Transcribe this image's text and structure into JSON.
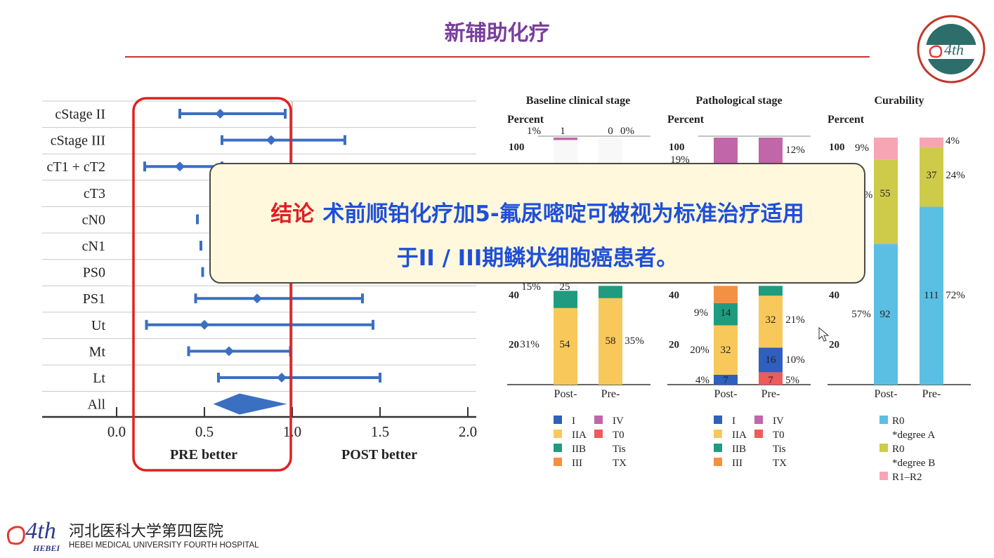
{
  "slide": {
    "title": "新辅助化疗",
    "conclusion": {
      "lead": "结论",
      "line1": "术前顺铂化疗加5-氟尿嘧啶可被视为标准治疗适用",
      "line2": "于II / III期鳞状细胞癌患者。"
    }
  },
  "logo_bottom": {
    "mark": "4th",
    "hebei": "HEBEI",
    "cn": "河北医科大学第四医院",
    "en": "HEBEI MEDICAL UNIVERSITY FOURTH HOSPITAL"
  },
  "logo_top": {
    "mark": "4th",
    "hebei": "HEBEI",
    "ring_text": "河北医科大学第四医院"
  },
  "colors": {
    "title": "#7a3f9c",
    "rule": "#c0392b",
    "forest": "#3b6fc2",
    "highlight_box": "#e02020",
    "stage_I": "#2f5fbf",
    "stage_IIA": "#f9c85a",
    "stage_IIB": "#1f9c7f",
    "stage_III": "#f39142",
    "stage_IV": "#c066a9",
    "stage_T0": "#ef5a5a",
    "r0a": "#5bbfe3",
    "r0b": "#cfcb4a",
    "r12": "#f7a5b5"
  },
  "chart_data": [
    {
      "type": "forest",
      "categories": [
        "cStage II",
        "cStage III",
        "cT1 + cT2",
        "cT3",
        "cN0",
        "cN1",
        "PS0",
        "PS1",
        "Ut",
        "Mt",
        "Lt",
        "All"
      ],
      "points": [
        {
          "label": "cStage II",
          "est": 0.59,
          "low": 0.36,
          "high": 0.96
        },
        {
          "label": "cStage III",
          "est": 0.88,
          "low": 0.6,
          "high": 1.3
        },
        {
          "label": "cT1 + cT2",
          "est": 0.36,
          "low": 0.16,
          "high": 0.6
        },
        {
          "label": "cN0",
          "low": 0.46
        },
        {
          "label": "cN1",
          "low": 0.48
        },
        {
          "label": "PS0",
          "low": 0.49
        },
        {
          "label": "PS1",
          "est": 0.8,
          "low": 0.45,
          "high": 1.4
        },
        {
          "label": "Ut",
          "est": 0.5,
          "low": 0.17,
          "high": 1.46
        },
        {
          "label": "Mt",
          "est": 0.64,
          "low": 0.41,
          "high": 0.99
        },
        {
          "label": "Lt",
          "est": 0.94,
          "low": 0.58,
          "high": 1.5
        },
        {
          "label": "All",
          "est": 0.7,
          "low": 0.55,
          "high": 0.97,
          "diamond": true
        }
      ],
      "xlim": [
        0,
        2
      ],
      "xticks": [
        "0.0",
        "0.5",
        "1.0",
        "1.5",
        "2.0"
      ],
      "xlabels": {
        "left": "PRE better",
        "right": "POST better"
      }
    },
    {
      "type": "stacked-bar",
      "title": "Baseline clinical stage",
      "ylabel": "Percent",
      "yticks": [
        "100",
        "40",
        "20"
      ],
      "categories": [
        "Post-",
        "Pre-"
      ],
      "legend": [
        [
          "I",
          "IV"
        ],
        [
          "IIA",
          "T0"
        ],
        [
          "IIB",
          "Tis"
        ],
        [
          "III",
          "TX"
        ]
      ],
      "labels": {
        "pct_top_left": "1%",
        "n_top_left": "1",
        "n_top_right": "0",
        "pct_top_right": "0%",
        "pct_mid_left": "15%",
        "n_mid_left": "25",
        "pct_low_left": "31%",
        "n_low_left": "54",
        "n_low_right": "58",
        "pct_low_right": "35%"
      }
    },
    {
      "type": "stacked-bar",
      "title": "Pathological stage",
      "ylabel": "Percent",
      "yticks": [
        "100",
        "40",
        "20"
      ],
      "categories": [
        "Post-",
        "Pre-"
      ],
      "legend": [
        [
          "I",
          "IV"
        ],
        [
          "IIA",
          "T0"
        ],
        [
          "IIB",
          "Tis"
        ],
        [
          "III",
          "TX"
        ]
      ],
      "labels": {
        "pct_top_left": "19%",
        "pct_top_right": "12%",
        "pct_a": "9%",
        "n_a": "14",
        "n_b": "32",
        "pct_b": "21%",
        "pct_c": "20%",
        "n_c": "32",
        "n_d": "16",
        "pct_d": "10%",
        "pct_e": "4%",
        "n_e": "7",
        "n_f": "7",
        "pct_f": "5%"
      }
    },
    {
      "type": "stacked-bar",
      "title": "Curability",
      "ylabel": "Percent",
      "yticks": [
        "100",
        "40",
        "20"
      ],
      "categories": [
        "Post-",
        "Pre-"
      ],
      "legend": [
        "R0",
        "*degree A",
        "R0",
        "*degree B",
        "R1–R2"
      ],
      "labels": {
        "pct_top_left": "9%",
        "pct_top_right": "4%",
        "n_mid_left": "55",
        "n_mid_right": "37",
        "pct_mid_right": "24%",
        "pct_low_left": "57%",
        "n_low_left": "92",
        "n_low_right": "111",
        "pct_low_right": "72%",
        "pct_cut": "%"
      }
    }
  ]
}
